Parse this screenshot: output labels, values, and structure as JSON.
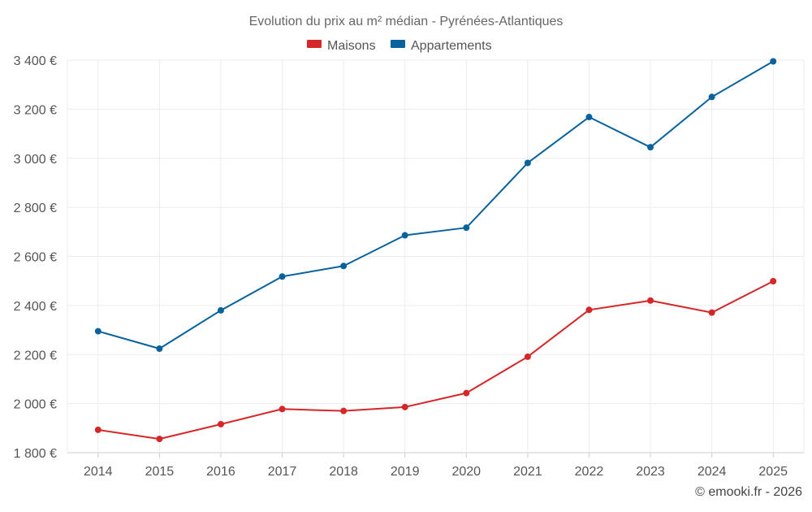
{
  "chart_data": {
    "type": "line",
    "title": "Evolution du prix au m² médian - Pyrénées-Atlantiques",
    "categories": [
      "2014",
      "2015",
      "2016",
      "2017",
      "2018",
      "2019",
      "2020",
      "2021",
      "2022",
      "2023",
      "2024",
      "2025"
    ],
    "series": [
      {
        "name": "Maisons",
        "color": "#d62728",
        "values": [
          1893,
          1856,
          1916,
          1978,
          1970,
          1986,
          2043,
          2191,
          2382,
          2420,
          2371,
          2499
        ]
      },
      {
        "name": "Appartements",
        "color": "#08639c",
        "values": [
          2295,
          2224,
          2380,
          2518,
          2561,
          2686,
          2717,
          2981,
          3168,
          3045,
          3250,
          3395
        ]
      }
    ],
    "ylim": [
      1800,
      3400
    ],
    "yticks": [
      1800,
      2000,
      2200,
      2400,
      2600,
      2800,
      3000,
      3200,
      3400
    ],
    "ytick_labels": [
      "1 800 €",
      "2 000 €",
      "2 200 €",
      "2 400 €",
      "2 600 €",
      "2 800 €",
      "3 000 €",
      "3 200 €",
      "3 400 €"
    ],
    "xlabel": "",
    "ylabel": "",
    "grid": true,
    "legend_position": "top-center"
  },
  "credit": "© emooki.fr - 2026"
}
